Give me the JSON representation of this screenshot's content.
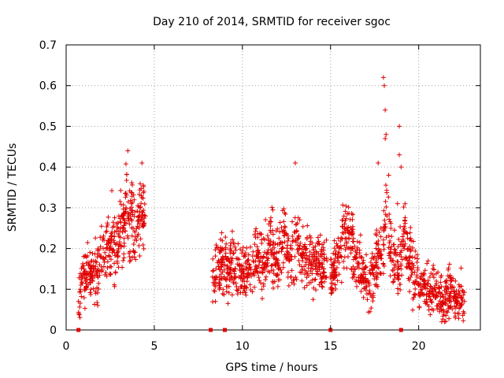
{
  "chart_data": {
    "type": "scatter",
    "title": "Day 210 of 2014, SRMTID for receiver sgoc",
    "xlabel": "GPS time / hours",
    "ylabel": "SRMTID / TECUs",
    "xlim": [
      0,
      23.5
    ],
    "ylim": [
      0,
      0.7
    ],
    "xticks": [
      0,
      5,
      10,
      15,
      20
    ],
    "yticks": [
      0,
      0.1,
      0.2,
      0.3,
      0.4,
      0.5,
      0.6,
      0.7
    ],
    "xtick_labels": [
      "0",
      "5",
      "10",
      "15",
      "20"
    ],
    "ytick_labels": [
      "0",
      "0.1",
      "0.2",
      "0.3",
      "0.4",
      "0.5",
      "0.6",
      "0.7"
    ],
    "grid": true,
    "marker": "+",
    "color": "#e00000",
    "series": [
      {
        "name": "SRMTID",
        "segments": [
          {
            "x": [
              0.7,
              0.8,
              0.9,
              1.0,
              1.1,
              1.2,
              1.3,
              1.4,
              1.5,
              1.6,
              1.7,
              1.8,
              1.9,
              2.0,
              2.1,
              2.2,
              2.3,
              2.4,
              2.5,
              2.6,
              2.7,
              2.8,
              2.9,
              3.0,
              3.1,
              3.2,
              3.3,
              3.4,
              3.5,
              3.6,
              3.7,
              3.8,
              3.9,
              4.0,
              4.1,
              4.2,
              4.3,
              4.4,
              4.5
            ],
            "y": [
              0.07,
              0.1,
              0.13,
              0.15,
              0.12,
              0.14,
              0.16,
              0.13,
              0.12,
              0.15,
              0.14,
              0.13,
              0.16,
              0.18,
              0.2,
              0.19,
              0.21,
              0.22,
              0.2,
              0.24,
              0.22,
              0.21,
              0.19,
              0.23,
              0.25,
              0.24,
              0.27,
              0.3,
              0.28,
              0.26,
              0.31,
              0.25,
              0.24,
              0.22,
              0.27,
              0.3,
              0.29,
              0.26,
              0.28
            ]
          },
          {
            "x": [
              8.3,
              8.4,
              8.5,
              9.0,
              9.2,
              9.4,
              9.6,
              9.8,
              10.0,
              10.2,
              10.4,
              10.6,
              10.8,
              11.0,
              11.2,
              11.4,
              11.6,
              11.8,
              12.0,
              12.2,
              12.4,
              12.6,
              12.8,
              13.0,
              13.2,
              13.4,
              13.6,
              13.8,
              14.0,
              14.2,
              14.4,
              14.6,
              14.8
            ],
            "y": [
              0.13,
              0.11,
              0.15,
              0.16,
              0.14,
              0.17,
              0.15,
              0.13,
              0.12,
              0.15,
              0.16,
              0.14,
              0.18,
              0.17,
              0.15,
              0.19,
              0.21,
              0.18,
              0.16,
              0.2,
              0.24,
              0.19,
              0.18,
              0.22,
              0.2,
              0.17,
              0.16,
              0.18,
              0.15,
              0.19,
              0.16,
              0.15,
              0.17
            ]
          },
          {
            "x": [
              15.0,
              15.2,
              15.4,
              15.6,
              15.8,
              16.0,
              16.2,
              16.4,
              16.6,
              16.8,
              17.0,
              17.2,
              17.4,
              17.6,
              17.8,
              18.0,
              18.2,
              18.4,
              18.6,
              18.8,
              19.0,
              19.2,
              19.4,
              19.6,
              19.8,
              20.0,
              20.2,
              20.4,
              20.6,
              20.8,
              21.0,
              21.2,
              21.4,
              21.6,
              21.8,
              22.0,
              22.2,
              22.4,
              22.6
            ],
            "y": [
              0.13,
              0.15,
              0.17,
              0.2,
              0.26,
              0.24,
              0.2,
              0.18,
              0.16,
              0.15,
              0.12,
              0.11,
              0.14,
              0.16,
              0.18,
              0.21,
              0.28,
              0.19,
              0.16,
              0.14,
              0.18,
              0.25,
              0.2,
              0.15,
              0.12,
              0.11,
              0.1,
              0.11,
              0.09,
              0.1,
              0.12,
              0.09,
              0.08,
              0.1,
              0.09,
              0.08,
              0.07,
              0.08,
              0.07
            ]
          }
        ],
        "outliers": [
          [
            3.5,
            0.44
          ],
          [
            4.3,
            0.41
          ],
          [
            13.0,
            0.41
          ],
          [
            18.0,
            0.62
          ],
          [
            18.05,
            0.6
          ],
          [
            18.1,
            0.54
          ],
          [
            18.15,
            0.48
          ],
          [
            18.1,
            0.47
          ],
          [
            18.9,
            0.5
          ],
          [
            18.9,
            0.43
          ],
          [
            17.7,
            0.41
          ],
          [
            18.3,
            0.38
          ],
          [
            19.0,
            0.4
          ],
          [
            18.8,
            0.31
          ]
        ]
      }
    ],
    "missing_data_markers_x": [
      0.7,
      8.2,
      9.0,
      15.0,
      19.0
    ]
  }
}
